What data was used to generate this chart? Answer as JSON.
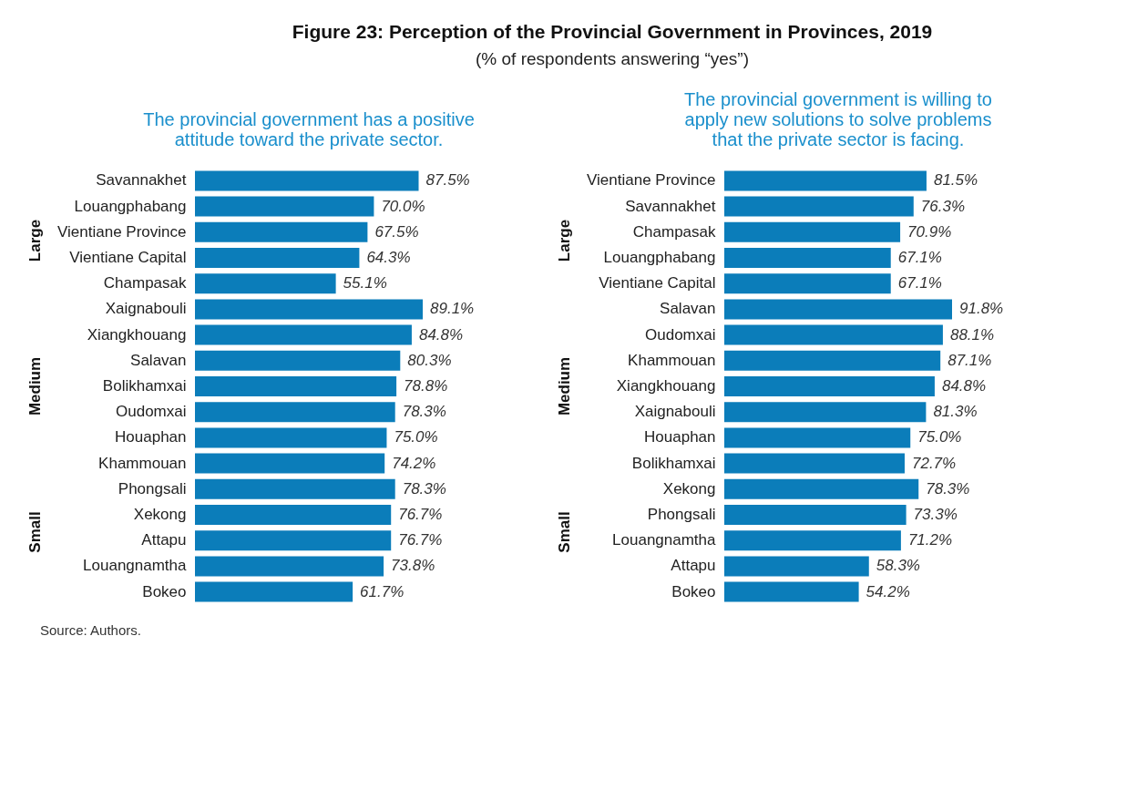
{
  "chart_data": [
    {
      "type": "other",
      "title": "Figure 23: Perception of the Provincial Government in Provinces, 2019",
      "subtitle": "(% of respondents answering “yes”)",
      "annotations": [
        "Source: Authors."
      ]
    },
    {
      "type": "bar",
      "orientation": "horizontal",
      "title": "The provincial government has a positive attitude toward the private sector.",
      "color": "#0b7dba",
      "categories": [
        "Savannakhet",
        "Louangphabang",
        "Vientiane Province",
        "Vientiane Capital",
        "Champasak",
        "Xaignabouli",
        "Xiangkhouang",
        "Salavan",
        "Bolikhamxai",
        "Oudomxai",
        "Houaphan",
        "Khammouan",
        "Phongsali",
        "Xekong",
        "Attapu",
        "Louangnamtha",
        "Bokeo"
      ],
      "values": [
        87.5,
        70.0,
        67.5,
        64.3,
        55.1,
        89.1,
        84.8,
        80.3,
        78.8,
        78.3,
        75.0,
        74.2,
        78.3,
        76.7,
        76.7,
        73.8,
        61.7
      ],
      "value_labels": [
        "87.5%",
        "70.0%",
        "67.5%",
        "64.3%",
        "55.1%",
        "89.1%",
        "84.8%",
        "80.3%",
        "78.8%",
        "78.3%",
        "75.0%",
        "74.2%",
        "78.3%",
        "76.7%",
        "76.7%",
        "73.8%",
        "61.7%"
      ],
      "annotations": [
        "Large",
        "Medium",
        "Small"
      ]
    },
    {
      "type": "bar",
      "orientation": "horizontal",
      "title": "The provincial government is willing to apply new solutions to solve problems that the private sector is facing.",
      "color": "#0b7dba",
      "categories": [
        "Vientiane Province",
        "Savannakhet",
        "Champasak",
        "Louangphabang",
        "Vientiane Capital",
        "Salavan",
        "Oudomxai",
        "Khammouan",
        "Xiangkhouang",
        "Xaignabouli",
        "Houaphan",
        "Bolikhamxai",
        "Xekong",
        "Phongsali",
        "Louangnamtha",
        "Attapu",
        "Bokeo"
      ],
      "values": [
        81.5,
        76.3,
        70.9,
        67.1,
        67.1,
        91.8,
        88.1,
        87.1,
        84.8,
        81.3,
        75.0,
        72.7,
        78.3,
        73.3,
        71.2,
        58.3,
        54.2
      ],
      "value_labels": [
        "81.5%",
        "76.3%",
        "70.9%",
        "67.1%",
        "67.1%",
        "91.8%",
        "88.1%",
        "87.1%",
        "84.8%",
        "81.3%",
        "75.0%",
        "72.7%",
        "78.3%",
        "73.3%",
        "71.2%",
        "58.3%",
        "54.2%"
      ],
      "annotations": [
        "Large",
        "Medium",
        "Small"
      ]
    }
  ]
}
